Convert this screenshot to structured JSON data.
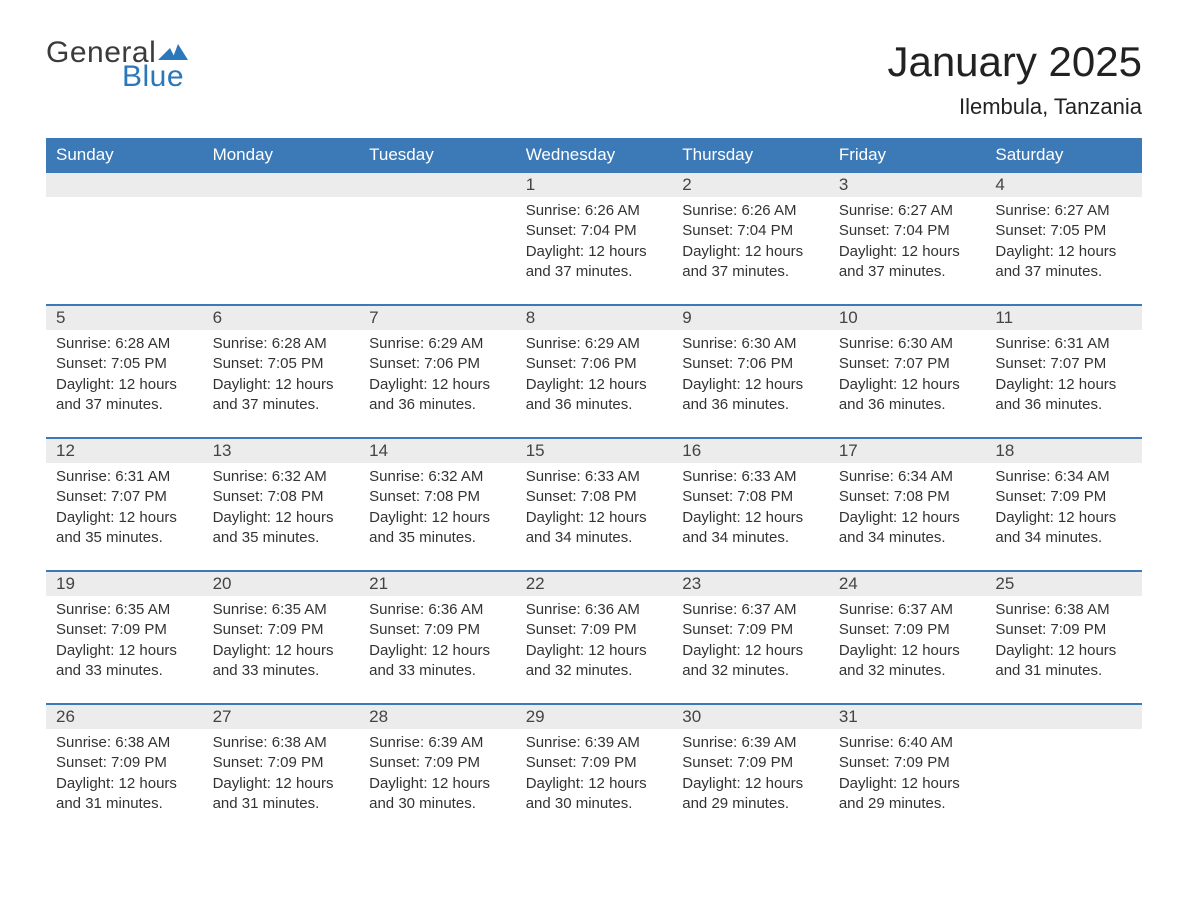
{
  "brand": {
    "text1": "General",
    "text2": "Blue",
    "text1_color": "#3b3b3b",
    "text2_color": "#2a77bb",
    "flag_color": "#2a77bb",
    "font_size": 30
  },
  "header": {
    "month_title": "January 2025",
    "location": "Ilembula, Tanzania",
    "title_fontsize": 42,
    "title_color": "#222222",
    "location_fontsize": 22,
    "location_color": "#222222"
  },
  "calendar": {
    "type": "table",
    "header_bg": "#3b79b7",
    "header_text_color": "#ffffff",
    "daynum_bg": "#ececec",
    "row_divider_color": "#3b79b7",
    "body_bg": "#ffffff",
    "text_color": "#333333",
    "header_fontsize": 17,
    "daynum_fontsize": 17,
    "detail_fontsize": 15,
    "columns": [
      "Sunday",
      "Monday",
      "Tuesday",
      "Wednesday",
      "Thursday",
      "Friday",
      "Saturday"
    ],
    "weeks": [
      [
        null,
        null,
        null,
        {
          "n": "1",
          "sunrise": "6:26 AM",
          "sunset": "7:04 PM",
          "daylight": "12 hours and 37 minutes."
        },
        {
          "n": "2",
          "sunrise": "6:26 AM",
          "sunset": "7:04 PM",
          "daylight": "12 hours and 37 minutes."
        },
        {
          "n": "3",
          "sunrise": "6:27 AM",
          "sunset": "7:04 PM",
          "daylight": "12 hours and 37 minutes."
        },
        {
          "n": "4",
          "sunrise": "6:27 AM",
          "sunset": "7:05 PM",
          "daylight": "12 hours and 37 minutes."
        }
      ],
      [
        {
          "n": "5",
          "sunrise": "6:28 AM",
          "sunset": "7:05 PM",
          "daylight": "12 hours and 37 minutes."
        },
        {
          "n": "6",
          "sunrise": "6:28 AM",
          "sunset": "7:05 PM",
          "daylight": "12 hours and 37 minutes."
        },
        {
          "n": "7",
          "sunrise": "6:29 AM",
          "sunset": "7:06 PM",
          "daylight": "12 hours and 36 minutes."
        },
        {
          "n": "8",
          "sunrise": "6:29 AM",
          "sunset": "7:06 PM",
          "daylight": "12 hours and 36 minutes."
        },
        {
          "n": "9",
          "sunrise": "6:30 AM",
          "sunset": "7:06 PM",
          "daylight": "12 hours and 36 minutes."
        },
        {
          "n": "10",
          "sunrise": "6:30 AM",
          "sunset": "7:07 PM",
          "daylight": "12 hours and 36 minutes."
        },
        {
          "n": "11",
          "sunrise": "6:31 AM",
          "sunset": "7:07 PM",
          "daylight": "12 hours and 36 minutes."
        }
      ],
      [
        {
          "n": "12",
          "sunrise": "6:31 AM",
          "sunset": "7:07 PM",
          "daylight": "12 hours and 35 minutes."
        },
        {
          "n": "13",
          "sunrise": "6:32 AM",
          "sunset": "7:08 PM",
          "daylight": "12 hours and 35 minutes."
        },
        {
          "n": "14",
          "sunrise": "6:32 AM",
          "sunset": "7:08 PM",
          "daylight": "12 hours and 35 minutes."
        },
        {
          "n": "15",
          "sunrise": "6:33 AM",
          "sunset": "7:08 PM",
          "daylight": "12 hours and 34 minutes."
        },
        {
          "n": "16",
          "sunrise": "6:33 AM",
          "sunset": "7:08 PM",
          "daylight": "12 hours and 34 minutes."
        },
        {
          "n": "17",
          "sunrise": "6:34 AM",
          "sunset": "7:08 PM",
          "daylight": "12 hours and 34 minutes."
        },
        {
          "n": "18",
          "sunrise": "6:34 AM",
          "sunset": "7:09 PM",
          "daylight": "12 hours and 34 minutes."
        }
      ],
      [
        {
          "n": "19",
          "sunrise": "6:35 AM",
          "sunset": "7:09 PM",
          "daylight": "12 hours and 33 minutes."
        },
        {
          "n": "20",
          "sunrise": "6:35 AM",
          "sunset": "7:09 PM",
          "daylight": "12 hours and 33 minutes."
        },
        {
          "n": "21",
          "sunrise": "6:36 AM",
          "sunset": "7:09 PM",
          "daylight": "12 hours and 33 minutes."
        },
        {
          "n": "22",
          "sunrise": "6:36 AM",
          "sunset": "7:09 PM",
          "daylight": "12 hours and 32 minutes."
        },
        {
          "n": "23",
          "sunrise": "6:37 AM",
          "sunset": "7:09 PM",
          "daylight": "12 hours and 32 minutes."
        },
        {
          "n": "24",
          "sunrise": "6:37 AM",
          "sunset": "7:09 PM",
          "daylight": "12 hours and 32 minutes."
        },
        {
          "n": "25",
          "sunrise": "6:38 AM",
          "sunset": "7:09 PM",
          "daylight": "12 hours and 31 minutes."
        }
      ],
      [
        {
          "n": "26",
          "sunrise": "6:38 AM",
          "sunset": "7:09 PM",
          "daylight": "12 hours and 31 minutes."
        },
        {
          "n": "27",
          "sunrise": "6:38 AM",
          "sunset": "7:09 PM",
          "daylight": "12 hours and 31 minutes."
        },
        {
          "n": "28",
          "sunrise": "6:39 AM",
          "sunset": "7:09 PM",
          "daylight": "12 hours and 30 minutes."
        },
        {
          "n": "29",
          "sunrise": "6:39 AM",
          "sunset": "7:09 PM",
          "daylight": "12 hours and 30 minutes."
        },
        {
          "n": "30",
          "sunrise": "6:39 AM",
          "sunset": "7:09 PM",
          "daylight": "12 hours and 29 minutes."
        },
        {
          "n": "31",
          "sunrise": "6:40 AM",
          "sunset": "7:09 PM",
          "daylight": "12 hours and 29 minutes."
        },
        null
      ]
    ],
    "labels": {
      "sunrise": "Sunrise: ",
      "sunset": "Sunset: ",
      "daylight": "Daylight: "
    }
  }
}
